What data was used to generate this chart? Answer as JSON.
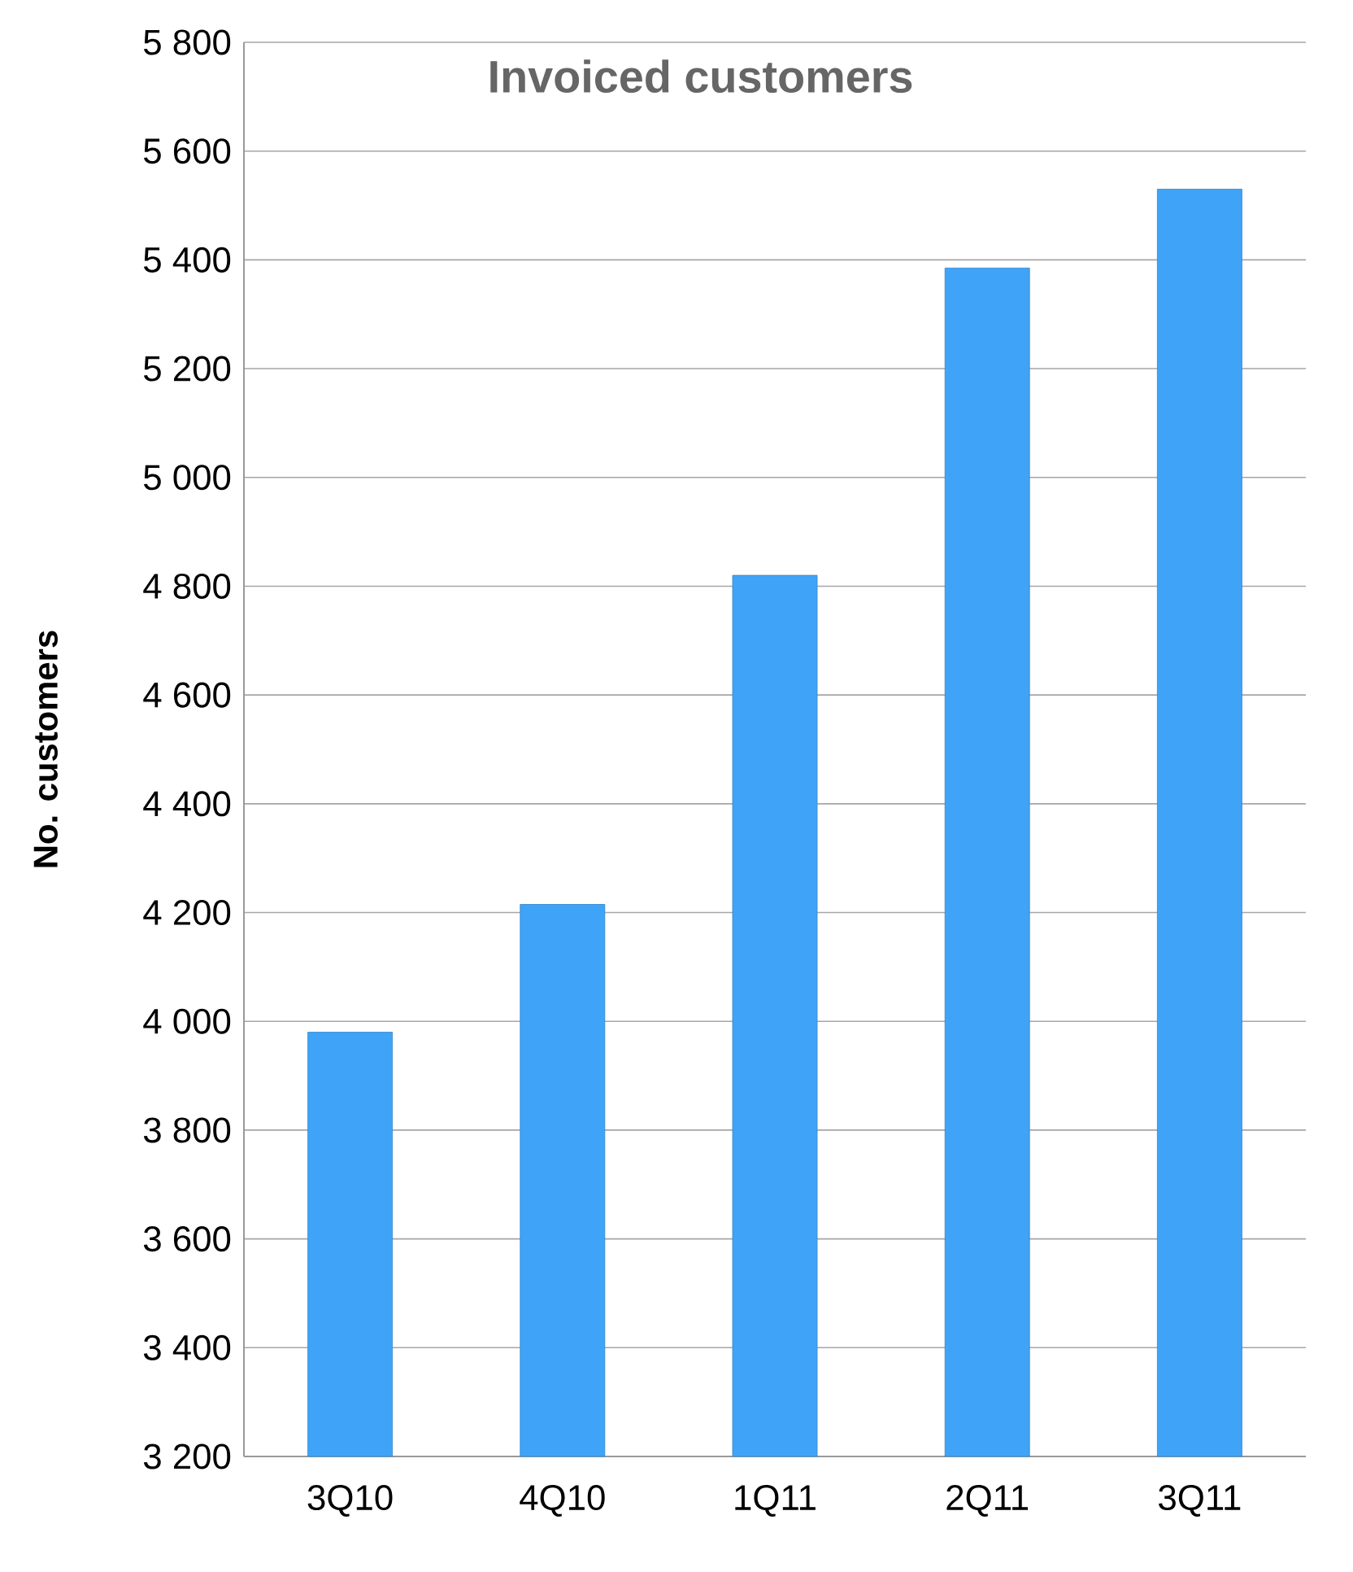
{
  "chart_data": {
    "type": "bar",
    "title": "Invoiced customers",
    "ylabel": "No.  customers",
    "categories": [
      "3Q10",
      "4Q10",
      "1Q11",
      "2Q11",
      "3Q11"
    ],
    "values": [
      3980,
      4215,
      4820,
      5385,
      5530
    ],
    "color": "#3fa4f7",
    "ylim": [
      3200,
      5800
    ],
    "yticks": [
      {
        "value": 3200,
        "label": "3 200"
      },
      {
        "value": 3400,
        "label": "3 400"
      },
      {
        "value": 3600,
        "label": "3 600"
      },
      {
        "value": 3800,
        "label": "3 800"
      },
      {
        "value": 4000,
        "label": "4 000"
      },
      {
        "value": 4200,
        "label": "4 200"
      },
      {
        "value": 4400,
        "label": "4 400"
      },
      {
        "value": 4600,
        "label": "4 600"
      },
      {
        "value": 4800,
        "label": "4 800"
      },
      {
        "value": 5000,
        "label": "5 000"
      },
      {
        "value": 5200,
        "label": "5 200"
      },
      {
        "value": 5400,
        "label": "5 400"
      },
      {
        "value": 5600,
        "label": "5 600"
      },
      {
        "value": 5800,
        "label": "5 800"
      }
    ],
    "grid": "y"
  }
}
